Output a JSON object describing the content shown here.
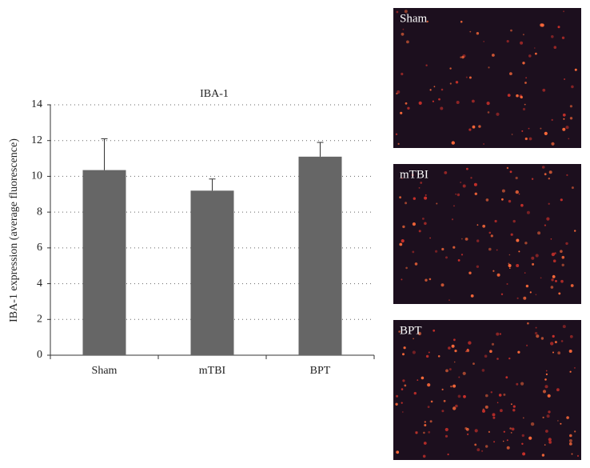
{
  "chart_data": {
    "type": "bar",
    "title": "IBA-1",
    "y_label": "IBA-1 expression (average fluorescence)",
    "categories": [
      "Sham",
      "mTBI",
      "BPT"
    ],
    "values": [
      10.35,
      9.2,
      11.1
    ],
    "errors": [
      1.75,
      0.65,
      0.8
    ],
    "color": "#666666",
    "ylim": [
      0,
      14
    ],
    "yticks": [
      0,
      2,
      4,
      6,
      8,
      10,
      12,
      14
    ],
    "grid": true
  },
  "image_panels": [
    {
      "label": "Sham"
    },
    {
      "label": "mTBI"
    },
    {
      "label": "BPT"
    }
  ]
}
